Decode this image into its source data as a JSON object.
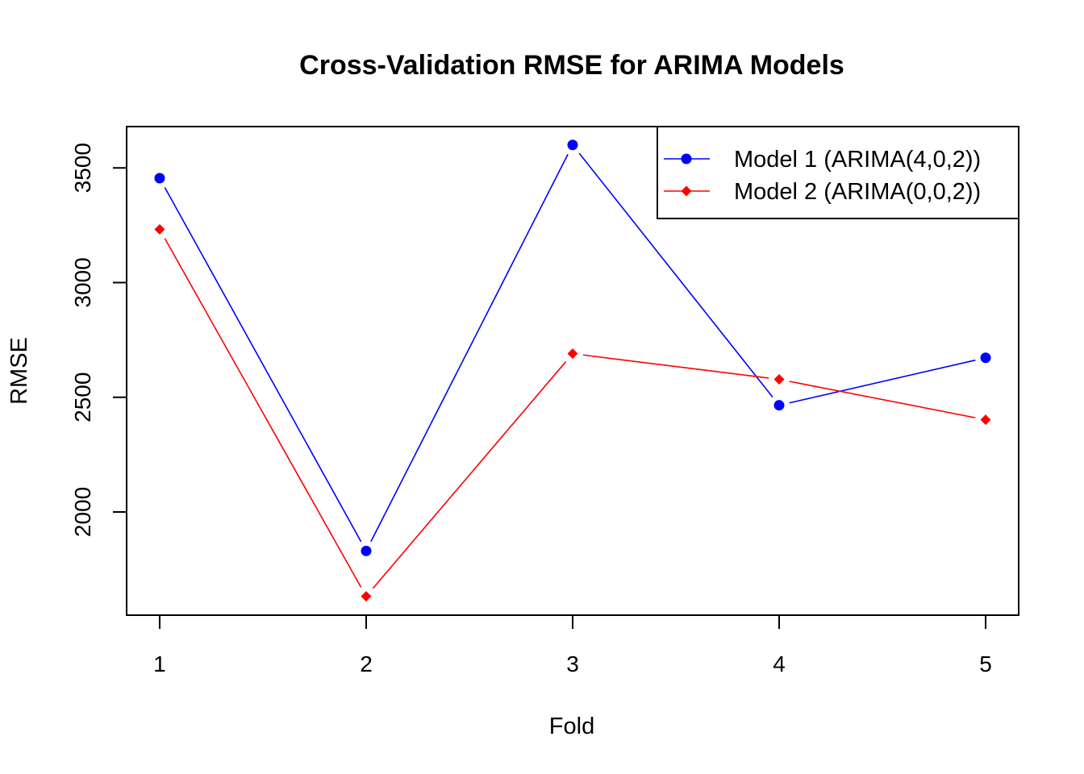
{
  "chart_data": {
    "type": "line",
    "title": "Cross-Validation RMSE for ARIMA Models",
    "xlabel": "Fold",
    "ylabel": "RMSE",
    "x": [
      1,
      2,
      3,
      4,
      5
    ],
    "x_tick_labels": [
      "1",
      "2",
      "3",
      "4",
      "5"
    ],
    "y_ticks": [
      2000,
      2500,
      3000,
      3500
    ],
    "y_tick_labels": [
      "2000",
      "2500",
      "3000",
      "3500"
    ],
    "xlim": [
      0.84,
      5.16
    ],
    "ylim": [
      1550,
      3680
    ],
    "grid": false,
    "legend_position": "top-right",
    "series": [
      {
        "name": "Model 1 (ARIMA(4,0,2))",
        "color": "#0000FF",
        "marker": "circle",
        "values": [
          3455,
          1830,
          3600,
          2465,
          2672
        ]
      },
      {
        "name": "Model 2 (ARIMA(0,0,2))",
        "color": "#FF0000",
        "marker": "diamond",
        "values": [
          3232,
          1632,
          2690,
          2578,
          2402
        ]
      }
    ]
  }
}
